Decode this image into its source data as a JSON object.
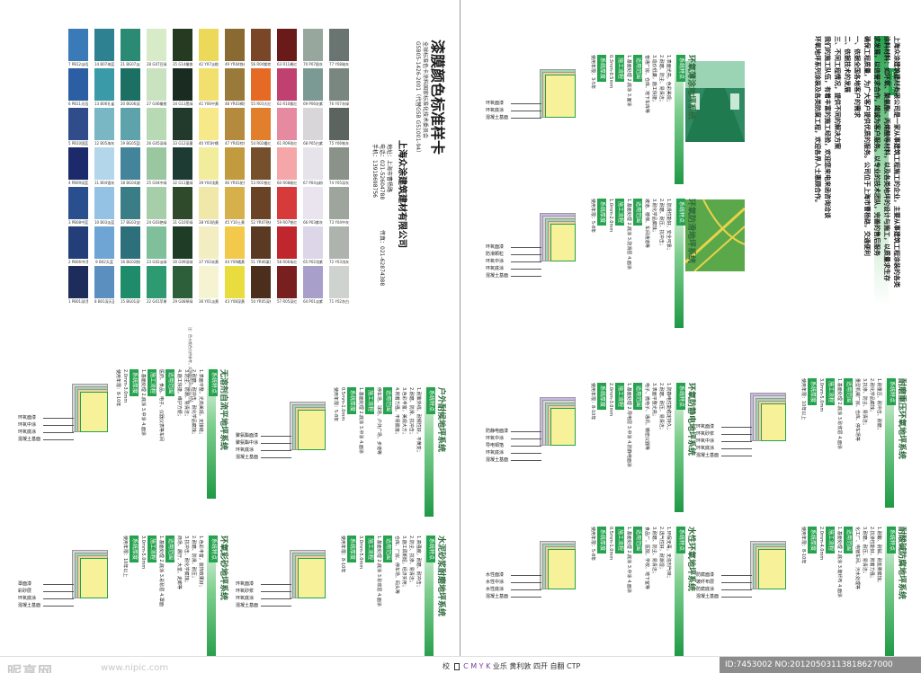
{
  "colors": {
    "green": "#25a24e",
    "dark_green": "#2d6a3b",
    "accent_blue": "#2a6fb2"
  },
  "color_card": {
    "title": "漆膜颜色标准样卡",
    "subtitle": "全球标准色卡涂料国家标准化技术委员会",
    "standard": "GSB05-1426-2001（代替GSB G51001-94）",
    "company": "上海众涂建筑建材有限公司",
    "address": "地址：上海市曹杨路",
    "phone": "电话：021-52604788",
    "mobile": "手机：13918698756",
    "fax": "传真：021-62874388",
    "note": "注：色卡颜色仅供参考，实物颜色请以实际为准",
    "tagline": "欢迎来电洽谈，来厂参观",
    "rows": [
      [
        {
          "c": "#1d2c5a",
          "l": "1 PB01深(黑)蓝"
        },
        {
          "c": "#233e78",
          "l": "2 PB06中(黑)蓝"
        },
        {
          "c": "#2a4f8e",
          "l": "3 PB08中蓝"
        },
        {
          "c": "#1c2a6b",
          "l": "4 PB09深蓝"
        },
        {
          "c": "#314c8a",
          "l": "5 PB10国蓝"
        },
        {
          "c": "#2c5ea4",
          "l": "6 PB11天(酞)蓝"
        },
        {
          "c": "#3b7ab8",
          "l": "7 PB12淡(酞)蓝"
        }
      ],
      [
        {
          "c": "#5b8fbf",
          "l": "8 B01深天蓝"
        },
        {
          "c": "#6ea5d4",
          "l": "9 B02天蓝"
        },
        {
          "c": "#94c2e4",
          "l": "10 B03淡蓝"
        },
        {
          "c": "#b4d6ea",
          "l": "11 B04银灰"
        },
        {
          "c": "#78b7c3",
          "l": "12 B05海灰"
        },
        {
          "c": "#3b9aa8",
          "l": "13 B06孔雀蓝"
        },
        {
          "c": "#2d8190",
          "l": "14 B07海蓝"
        }
      ],
      [
        {
          "c": "#1e8c6a",
          "l": "15 BG01深竹绿"
        },
        {
          "c": "#2d6f7a",
          "l": "16 BG02鲜绿"
        },
        {
          "c": "#3a7d86",
          "l": "17 BG03宝绿"
        },
        {
          "c": "#44849a",
          "l": "18 BG04湖绿"
        },
        {
          "c": "#5ea2ac",
          "l": "19 BG05蓝绿"
        },
        {
          "c": "#1c6f63",
          "l": "20 BG06深湖绿"
        },
        {
          "c": "#2a8a74",
          "l": "21 BG07淡湖绿"
        }
      ],
      [
        {
          "c": "#2e9a72",
          "l": "22 G01苹果绿"
        },
        {
          "c": "#7fbf9a",
          "l": "23 G02淡绿"
        },
        {
          "c": "#a6cfa9",
          "l": "24 G03艳绿"
        },
        {
          "c": "#9bc7a0",
          "l": "25 G04中绿"
        },
        {
          "c": "#b7d9b3",
          "l": "26 G05深绿"
        },
        {
          "c": "#c9e2bf",
          "l": "27 G06橄榄绿"
        },
        {
          "c": "#d8ebc8",
          "l": "28 G07豆绿"
        }
      ],
      [
        {
          "c": "#2c5f3a",
          "l": "29 G08草绿"
        },
        {
          "c": "#1f3d26",
          "l": "30 G09深绿"
        },
        {
          "c": "#2f4a2b",
          "l": "31 G10军绿"
        },
        {
          "c": "#1e3b33",
          "l": "32 G11墨绿"
        },
        {
          "c": "#213a2c",
          "l": "33 G12深墨绿"
        },
        {
          "c": "#1a2c22",
          "l": "34 G13黑绿"
        },
        {
          "c": "#263a22",
          "l": "35 G14橄榄"
        }
      ],
      [
        {
          "c": "#f6f3d2",
          "l": "36 Y01淡黄"
        },
        {
          "c": "#f3eec1",
          "l": "37 Y02米黄"
        },
        {
          "c": "#efe8a8",
          "l": "38 Y03奶黄"
        },
        {
          "c": "#f2ed9c",
          "l": "39 Y04浅黄"
        },
        {
          "c": "#f7e98a",
          "l": "40 Y05柠檬黄"
        },
        {
          "c": "#f1e06e",
          "l": "41 Y06中黄"
        },
        {
          "c": "#ecd95a",
          "l": "42 Y07淡橙黄"
        }
      ],
      [
        {
          "c": "#e9dc3f",
          "l": "43 Y08深黄"
        },
        {
          "c": "#f2c94a",
          "l": "44 Y09橘黄"
        },
        {
          "c": "#d6b14b",
          "l": "45 Y10土黄"
        },
        {
          "c": "#c29b3f",
          "l": "46 YR01驼色"
        },
        {
          "c": "#b48a3e",
          "l": "47 YR02棕色"
        },
        {
          "c": "#9a7a3a",
          "l": "48 YR03褐色"
        },
        {
          "c": "#8a6a30",
          "l": "49 YR04铁红"
        }
      ],
      [
        {
          "c": "#4b2e1c",
          "l": "50 YR05深棕"
        },
        {
          "c": "#5a3a22",
          "l": "51 YR06栗色"
        },
        {
          "c": "#6a4326",
          "l": "52 YR07熟褐"
        },
        {
          "c": "#76502c",
          "l": "53 R01铁红"
        },
        {
          "c": "#e27f2d",
          "l": "54 R02橘红"
        },
        {
          "c": "#e56a25",
          "l": "55 R03大红"
        },
        {
          "c": "#7a4628",
          "l": "56 R04紫棕"
        }
      ],
      [
        {
          "c": "#7a1f1f",
          "l": "57 R05深红"
        },
        {
          "c": "#c0262e",
          "l": "58 R06朱红"
        },
        {
          "c": "#d63a3a",
          "l": "59 R07铁红"
        },
        {
          "c": "#f4a6a8",
          "l": "60 R08粉红"
        },
        {
          "c": "#e58aa0",
          "l": "61 R09玫红"
        },
        {
          "c": "#c04070",
          "l": "62 R10紫红"
        },
        {
          "c": "#6b1a1a",
          "l": "63 R11酱红"
        }
      ],
      [
        {
          "c": "#a99fcb",
          "l": "64 P01淡紫"
        },
        {
          "c": "#dcd6e8",
          "l": "65 P02浅紫"
        },
        {
          "c": "#e9e4ee",
          "l": "66 P03紫灰"
        },
        {
          "c": "#e7e3ea",
          "l": "67 P04淡粉紫"
        },
        {
          "c": "#d9d6da",
          "l": "68 P05白紫"
        },
        {
          "c": "#7c9a94",
          "l": "69 P06灰紫"
        },
        {
          "c": "#97a79e",
          "l": "70 P07银灰"
        }
      ],
      [
        {
          "c": "#cfd3cf",
          "l": "71 Y02灰白"
        },
        {
          "c": "#aeb3ad",
          "l": "72 Y03浅灰"
        },
        {
          "c": "#9ea59c",
          "l": "73 Y04中灰"
        },
        {
          "c": "#8a928a",
          "l": "74 Y05深灰"
        },
        {
          "c": "#5c6460",
          "l": "75 Y06铁灰"
        },
        {
          "c": "#7a8680",
          "l": "76 Y07灰绿"
        },
        {
          "c": "#6a7470",
          "l": "77 Y08暗灰"
        }
      ]
    ]
  },
  "intro": {
    "heading": "公司简介",
    "text": [
      "上海众涂建筑建材有限公司是一家从事建筑工程施工的企业，主要从事建筑工程涂装的各类",
      "涂料材料：如环氧、聚氨酯、丙烯酸等材料，以及各类地坪的设计与施工，以质量求生存",
      "求发展，以信誉求合作，竭诚为客户服务。以专业的技术团队，完善的售后服务",
      "确保工程质量，为广大客户提供优质的服务。公司位于上海市曹杨路，交通便利",
      "一、依据全国各地客户的需求",
      "二、依据技术的发展",
      "三、不同工程情况，提供不同的解决方案",
      "我们的施工队伍，有着丰富的施工经验，欢迎您来电来函咨询洽谈",
      "环氧地坪系列涂装及各类防腐工程，欢迎各界人士惠顾合作。"
    ]
  },
  "panels": [
    {
      "title": "无溶剂自流平地坪系统",
      "tag1": "系统特点",
      "tag2": "适用范围",
      "tag3": "施工流程",
      "tag4": "系统厚度",
      "lines": [
        "1.表面平整，光亮美观，无接缝；",
        "2.耐磨、耐冲击、耐化学品腐蚀；",
        "3.防尘、防潮、易清洁；",
        "4.施工快捷，维护方便；",
        "医药、食品、电子、仪器仪表等车间",
        "1.基面处理 2.底涂 3.中涂 4.面涂",
        "2.0mm-3.0mm",
        "使用年限：8-10年"
      ],
      "callouts": [
        "环氧面漆",
        "环氧中涂",
        "环氧底涂",
        "混凝土基面"
      ]
    },
    {
      "title": "户外耐候地坪系统",
      "tag1": "系统特点",
      "tag2": "适用范围",
      "tag3": "施工流程",
      "tag4": "系统厚度",
      "lines": [
        "1.耐紫外线、耐候性好，不黄变；",
        "2.耐磨、防滑、抗冲击；",
        "3.色彩丰富，美观大方；",
        "4.附着力强，不易脱落；",
        "停车场、球场、户外广场、步道等",
        "1.基面处理 2.底涂 3.中涂 4.面涂",
        "0.5mm-1.0mm",
        "使用年限：5-8年"
      ],
      "callouts": [
        "聚氨酯面漆",
        "聚氨酯中涂",
        "环氧底涂",
        "混凝土基面"
      ]
    },
    {
      "title": "环氧彩砂地坪系统",
      "tag1": "系统特点",
      "tag2": "适用范围",
      "tag3": "施工流程",
      "tag4": "系统厚度",
      "lines": [
        "1.色彩丰富，装饰效果好；",
        "2.耐磨、防滑、耐压；",
        "3.抗冲击、耐化学腐蚀；",
        "商场、展厅、大堂、走廊等",
        "1.基面处理 2.底涂 3.彩砂层 4.罩面",
        "3.0mm-5.0mm",
        "使用年限：10年以上"
      ],
      "callouts": [
        "罩面漆",
        "彩砂层",
        "环氧底涂",
        "混凝土基面"
      ]
    },
    {
      "title": "水泥砂浆耐磨地坪系统",
      "tag1": "系统特点",
      "tag2": "适用范围",
      "tag3": "施工流程",
      "tag4": "系统厚度",
      "lines": [
        "1.高强度，耐磨、耐冲击；",
        "2.防尘、抗渗、易清洁；",
        "3.施工周期短，经济实用；",
        "仓库、厂房、停车场、码头等",
        "1.基面处理 2.底涂 3.砂浆层 4.面涂",
        "3.0mm-5.0mm",
        "使用年限：8-10年"
      ],
      "callouts": [
        "环氧面漆",
        "环氧砂浆",
        "环氧底涂",
        "混凝土基面"
      ]
    },
    {
      "title": "环氧薄涂地坪系统",
      "tag1": "系统特点",
      "tag2": "适用范围",
      "tag3": "施工流程",
      "tag4": "系统厚度",
      "lines": [
        "1.表面光亮，色彩美观；",
        "2.耐磨、防尘、易清洁；",
        "3.造价低廉，施工快捷；",
        "普通厂房、仓库、地下车库等",
        "1.基面处理 2.底涂 3.面涂",
        "0.3mm-0.5mm",
        "使用年限：3-5年"
      ],
      "callouts": [
        "环氧面漆",
        "环氧底涂",
        "混凝土基面"
      ]
    },
    {
      "title": "环氧防滑地坪系统",
      "tag1": "系统特点",
      "tag2": "适用范围",
      "tag3": "施工流程",
      "tag4": "系统厚度",
      "lines": [
        "1.防滑性能好，安全可靠；",
        "2.耐磨、耐压、抗冲击；",
        "3.耐化学品腐蚀；",
        "坡道、楼梯、车间通道等",
        "1.基面处理 2.底涂 3.防滑层 4.面涂",
        "1.0mm-2.0mm",
        "使用年限：5-8年"
      ],
      "callouts": [
        "环氧面漆",
        "防滑颗粒",
        "环氧中涂",
        "环氧底涂",
        "混凝土基面"
      ]
    },
    {
      "title": "环氧防静电地坪系统",
      "tag1": "系统特点",
      "tag2": "适用范围",
      "tag3": "施工流程",
      "tag4": "系统厚度",
      "lines": [
        "1.防静电性能稳定持久；",
        "2.耐磨、耐压、易清洁；",
        "3.表面平整光亮；",
        "电子、微电子、通讯、精密仪器等",
        "1.基面处理 2.导电层 3.中涂 4.防静电面涂",
        "2.0mm-3.0mm",
        "使用年限：8-10年"
      ],
      "callouts": [
        "防静电面漆",
        "环氧中涂",
        "导电铜箔",
        "环氧底涂",
        "混凝土基面"
      ]
    },
    {
      "title": "耐磨重压环氧地坪系统",
      "tag1": "系统特点",
      "tag2": "适用范围",
      "tag3": "施工流程",
      "tag4": "系统厚度",
      "lines": [
        "1.耐重压、耐冲击、耐磨；",
        "2.耐化学品腐蚀；",
        "3.抗渗、防尘、易清洁；",
        "重型机械厂房、仓库、停车场等",
        "1.基面处理 2.底涂 3.砂浆层 4.面涂",
        "3.0mm-5.0mm",
        "使用年限：10年以上"
      ],
      "callouts": [
        "环氧面漆",
        "环氧砂浆",
        "环氧中涂",
        "环氧底涂",
        "混凝土基面"
      ]
    },
    {
      "title": "水性环氧地坪系统",
      "tag1": "系统特点",
      "tag2": "适用范围",
      "tag3": "施工流程",
      "tag4": "系统厚度",
      "lines": [
        "1.环保无毒，无溶剂气味；",
        "2.透气性好，耐潮湿；",
        "3.耐磨、防尘、易清洁；",
        "食品厂、医院、学校、地下室等",
        "1.基面处理 2.底涂 3.中涂 4.面涂",
        "0.5mm-1.0mm",
        "使用年限：5-8年"
      ],
      "callouts": [
        "水性面漆",
        "水性中涂",
        "水性底涂",
        "混凝土基面"
      ]
    },
    {
      "title": "耐酸碱防腐地坪系统",
      "tag1": "系统特点",
      "tag2": "适用范围",
      "tag3": "施工流程",
      "tag4": "系统厚度",
      "lines": [
        "1.耐酸、耐碱、耐盐雾腐蚀；",
        "2.抗渗性能好，附着力强；",
        "3.耐磨、耐压、易清洁；",
        "化工厂、电镀车间、污水处理等",
        "1.基面处理 2.底涂 3.玻纤布 4.面涂",
        "2.0mm-4.0mm",
        "使用年限：8-10年"
      ],
      "callouts": [
        "防腐面漆",
        "玻纤布层",
        "防腐底涂",
        "混凝土基面"
      ]
    }
  ],
  "footer": {
    "brand": "昵享网",
    "brand_url": "www.nipic.com",
    "cmyk_prefix": "校",
    "cmyk_letters": "C M Y K",
    "cmyk_suffix": "业乐 黄利敦 四开 自翻 CTP",
    "id_text": "ID:7453002 NO:20120503113818627000"
  }
}
